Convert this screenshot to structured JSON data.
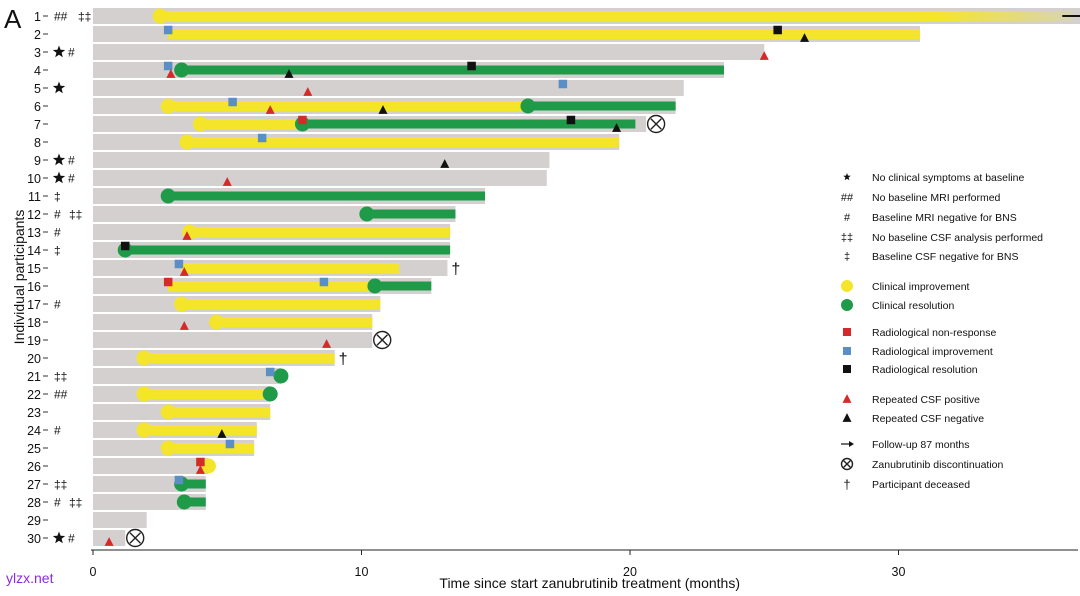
{
  "panel_label": "A",
  "watermark": "ylzx.net",
  "chart_data": {
    "type": "swimmer",
    "xlabel": "Time since start zanubrutinib treatment (months)",
    "ylabel": "Individual participants",
    "xlim": [
      0,
      37
    ],
    "xticks": [
      0,
      10,
      20,
      30
    ],
    "participants": [
      {
        "id": "1",
        "marks": "## ‡‡",
        "duration": 37,
        "arrow": true,
        "segments": [
          {
            "type": "clinical_improvement",
            "start": 2.5,
            "end": 36.5,
            "fade": true
          }
        ],
        "events": [
          {
            "type": "clinical_improvement_dot",
            "t": 2.5
          }
        ]
      },
      {
        "id": "2",
        "marks": "",
        "duration": 30.8,
        "segments": [
          {
            "type": "clinical_improvement",
            "start": 2.8,
            "end": 30.8
          }
        ],
        "events": [
          {
            "type": "radiological_improvement",
            "t": 2.8
          },
          {
            "type": "radiological_resolution",
            "t": 25.5
          },
          {
            "type": "csf_negative",
            "t": 26.5
          }
        ]
      },
      {
        "id": "3",
        "marks": "* #",
        "duration": 25.0,
        "segments": [],
        "events": [
          {
            "type": "csf_positive",
            "t": 25.0
          }
        ]
      },
      {
        "id": "4",
        "marks": "",
        "duration": 23.5,
        "segments": [
          {
            "type": "clinical_resolution",
            "start": 3.3,
            "end": 23.5
          }
        ],
        "events": [
          {
            "type": "radiological_improvement",
            "t": 2.8
          },
          {
            "type": "csf_positive",
            "t": 2.9
          },
          {
            "type": "clinical_resolution_dot",
            "t": 3.3
          },
          {
            "type": "csf_negative",
            "t": 7.3
          },
          {
            "type": "radiological_resolution",
            "t": 14.1
          }
        ]
      },
      {
        "id": "5",
        "marks": "*",
        "duration": 22.0,
        "segments": [],
        "events": [
          {
            "type": "csf_positive",
            "t": 8.0
          },
          {
            "type": "radiological_improvement",
            "t": 17.5
          }
        ]
      },
      {
        "id": "6",
        "marks": "",
        "duration": 21.7,
        "segments": [
          {
            "type": "clinical_improvement",
            "start": 2.8,
            "end": 16.2
          },
          {
            "type": "clinical_resolution",
            "start": 16.2,
            "end": 21.7
          }
        ],
        "events": [
          {
            "type": "clinical_improvement_dot",
            "t": 2.8
          },
          {
            "type": "radiological_improvement",
            "t": 5.2
          },
          {
            "type": "csf_positive",
            "t": 6.6
          },
          {
            "type": "csf_negative",
            "t": 10.8
          },
          {
            "type": "clinical_resolution_dot",
            "t": 16.2
          }
        ]
      },
      {
        "id": "7",
        "marks": "",
        "duration": 20.6,
        "discontinued": true,
        "segments": [
          {
            "type": "clinical_improvement",
            "start": 4.0,
            "end": 7.8
          },
          {
            "type": "clinical_resolution",
            "start": 7.8,
            "end": 20.2
          }
        ],
        "events": [
          {
            "type": "clinical_improvement_dot",
            "t": 4.0
          },
          {
            "type": "radiological_nonresponse",
            "t": 7.8
          },
          {
            "type": "clinical_resolution_dot",
            "t": 7.8
          },
          {
            "type": "radiological_resolution",
            "t": 17.8
          },
          {
            "type": "csf_negative",
            "t": 19.5
          }
        ]
      },
      {
        "id": "8",
        "marks": "",
        "duration": 19.6,
        "segments": [
          {
            "type": "clinical_improvement",
            "start": 3.5,
            "end": 19.6
          }
        ],
        "events": [
          {
            "type": "clinical_improvement_dot",
            "t": 3.5
          },
          {
            "type": "radiological_improvement",
            "t": 6.3
          }
        ]
      },
      {
        "id": "9",
        "marks": "* #",
        "duration": 17.0,
        "segments": [],
        "events": [
          {
            "type": "csf_negative",
            "t": 13.1
          }
        ]
      },
      {
        "id": "10",
        "marks": "* #",
        "duration": 16.9,
        "segments": [],
        "events": [
          {
            "type": "csf_positive",
            "t": 5.0
          }
        ]
      },
      {
        "id": "11",
        "marks": "‡",
        "duration": 14.6,
        "segments": [
          {
            "type": "clinical_resolution",
            "start": 2.8,
            "end": 14.6
          }
        ],
        "events": [
          {
            "type": "clinical_resolution_dot",
            "t": 2.8
          }
        ]
      },
      {
        "id": "12",
        "marks": "# ‡‡",
        "duration": 13.5,
        "segments": [
          {
            "type": "clinical_resolution",
            "start": 10.2,
            "end": 13.5
          }
        ],
        "events": [
          {
            "type": "clinical_resolution_dot",
            "t": 10.2
          }
        ]
      },
      {
        "id": "13",
        "marks": "#",
        "duration": 13.3,
        "segments": [
          {
            "type": "clinical_improvement",
            "start": 3.6,
            "end": 13.3
          }
        ],
        "events": [
          {
            "type": "clinical_improvement_dot",
            "t": 3.6
          },
          {
            "type": "csf_positive",
            "t": 3.5
          }
        ]
      },
      {
        "id": "14",
        "marks": "‡",
        "duration": 13.3,
        "segments": [
          {
            "type": "clinical_resolution",
            "start": 1.2,
            "end": 13.3
          }
        ],
        "events": [
          {
            "type": "clinical_resolution_dot",
            "t": 1.2
          },
          {
            "type": "radiological_resolution",
            "t": 1.2
          }
        ]
      },
      {
        "id": "15",
        "marks": "",
        "duration": 13.2,
        "deceased": true,
        "segments": [
          {
            "type": "clinical_improvement",
            "start": 3.3,
            "end": 11.4
          }
        ],
        "events": [
          {
            "type": "radiological_improvement",
            "t": 3.2
          },
          {
            "type": "csf_positive",
            "t": 3.4
          }
        ]
      },
      {
        "id": "16",
        "marks": "",
        "duration": 12.6,
        "segments": [
          {
            "type": "clinical_improvement",
            "start": 2.8,
            "end": 10.5
          },
          {
            "type": "clinical_resolution",
            "start": 10.5,
            "end": 12.6
          }
        ],
        "events": [
          {
            "type": "radiological_nonresponse",
            "t": 2.8
          },
          {
            "type": "radiological_improvement",
            "t": 8.6
          },
          {
            "type": "clinical_resolution_dot",
            "t": 10.5
          }
        ]
      },
      {
        "id": "17",
        "marks": "#",
        "duration": 10.7,
        "segments": [
          {
            "type": "clinical_improvement",
            "start": 3.3,
            "end": 10.7
          }
        ],
        "events": [
          {
            "type": "clinical_improvement_dot",
            "t": 3.3
          }
        ]
      },
      {
        "id": "18",
        "marks": "",
        "duration": 10.4,
        "segments": [
          {
            "type": "clinical_improvement",
            "start": 4.6,
            "end": 10.4
          }
        ],
        "events": [
          {
            "type": "clinical_improvement_dot",
            "t": 4.6
          },
          {
            "type": "csf_positive",
            "t": 3.4
          }
        ]
      },
      {
        "id": "19",
        "marks": "",
        "duration": 10.4,
        "discontinued": true,
        "segments": [],
        "events": [
          {
            "type": "csf_positive",
            "t": 8.7
          }
        ]
      },
      {
        "id": "20",
        "marks": "",
        "duration": 9.0,
        "deceased": true,
        "segments": [
          {
            "type": "clinical_improvement",
            "start": 1.9,
            "end": 9.0
          }
        ],
        "events": [
          {
            "type": "clinical_improvement_dot",
            "t": 1.9
          }
        ]
      },
      {
        "id": "21",
        "marks": "‡‡",
        "duration": 7.0,
        "segments": [],
        "events": [
          {
            "type": "radiological_improvement",
            "t": 6.6
          },
          {
            "type": "clinical_resolution_dot",
            "t": 7.0
          }
        ]
      },
      {
        "id": "22",
        "marks": "##",
        "duration": 6.6,
        "segments": [
          {
            "type": "clinical_improvement",
            "start": 1.9,
            "end": 6.6
          }
        ],
        "events": [
          {
            "type": "clinical_improvement_dot",
            "t": 1.9
          },
          {
            "type": "clinical_resolution_dot",
            "t": 6.6
          }
        ]
      },
      {
        "id": "23",
        "marks": "",
        "duration": 6.6,
        "segments": [
          {
            "type": "clinical_improvement",
            "start": 2.8,
            "end": 6.6
          }
        ],
        "events": [
          {
            "type": "clinical_improvement_dot",
            "t": 2.8
          }
        ]
      },
      {
        "id": "24",
        "marks": "#",
        "duration": 6.1,
        "segments": [
          {
            "type": "clinical_improvement",
            "start": 1.9,
            "end": 6.1
          }
        ],
        "events": [
          {
            "type": "clinical_improvement_dot",
            "t": 1.9
          },
          {
            "type": "csf_negative",
            "t": 4.8
          }
        ]
      },
      {
        "id": "25",
        "marks": "",
        "duration": 6.0,
        "segments": [
          {
            "type": "clinical_improvement",
            "start": 2.8,
            "end": 6.0
          }
        ],
        "events": [
          {
            "type": "clinical_improvement_dot",
            "t": 2.8
          },
          {
            "type": "radiological_improvement",
            "t": 5.1
          }
        ]
      },
      {
        "id": "26",
        "marks": "",
        "duration": 4.3,
        "segments": [],
        "events": [
          {
            "type": "clinical_improvement_dot",
            "t": 4.3
          },
          {
            "type": "radiological_nonresponse",
            "t": 4.0
          },
          {
            "type": "csf_positive",
            "t": 4.0
          }
        ]
      },
      {
        "id": "27",
        "marks": "‡‡",
        "duration": 4.2,
        "segments": [
          {
            "type": "clinical_resolution",
            "start": 3.3,
            "end": 4.2
          }
        ],
        "events": [
          {
            "type": "clinical_resolution_dot",
            "t": 3.3
          },
          {
            "type": "radiological_improvement",
            "t": 3.2
          }
        ]
      },
      {
        "id": "28",
        "marks": "# ‡‡",
        "duration": 4.2,
        "segments": [
          {
            "type": "clinical_resolution",
            "start": 3.4,
            "end": 4.2
          }
        ],
        "events": [
          {
            "type": "clinical_resolution_dot",
            "t": 3.4
          }
        ]
      },
      {
        "id": "29",
        "marks": "",
        "duration": 2.0,
        "segments": [],
        "events": []
      },
      {
        "id": "30",
        "marks": "* #",
        "duration": 1.2,
        "discontinued": true,
        "segments": [],
        "events": [
          {
            "type": "csf_positive",
            "t": 0.6
          }
        ]
      }
    ],
    "legend": [
      {
        "symbol": "star",
        "label": "No clinical symptoms at baseline"
      },
      {
        "symbol": "text",
        "text": "##",
        "label": "No baseline MRI performed"
      },
      {
        "symbol": "text",
        "text": "#",
        "label": "Baseline MRI negative for BNS"
      },
      {
        "symbol": "text",
        "text": "‡‡",
        "label": "No baseline CSF analysis performed"
      },
      {
        "symbol": "text",
        "text": "‡",
        "label": "Baseline CSF negative for BNS"
      },
      {
        "symbol": "yellow-circle",
        "label": "Clinical improvement"
      },
      {
        "symbol": "green-circle",
        "label": "Clinical resolution"
      },
      {
        "symbol": "red-square",
        "label": "Radiological non-response"
      },
      {
        "symbol": "blue-square",
        "label": "Radiological improvement"
      },
      {
        "symbol": "black-square",
        "label": "Radiological resolution"
      },
      {
        "symbol": "red-triangle",
        "label": "Repeated CSF positive"
      },
      {
        "symbol": "black-triangle",
        "label": "Repeated CSF negative"
      },
      {
        "symbol": "arrow",
        "label": "Follow-up 87 months"
      },
      {
        "symbol": "circle-x",
        "label": "Zanubrutinib discontinuation"
      },
      {
        "symbol": "dagger",
        "text": "†",
        "label": "Participant deceased"
      }
    ],
    "colors": {
      "bar_gray": "#d3d0cf",
      "clinical_improvement": "#f5e52a",
      "clinical_resolution": "#1f9a48",
      "radiological_nonresponse": "#d62a2a",
      "radiological_improvement": "#5b8ec4",
      "radiological_resolution": "#111111",
      "csf_positive": "#d62a2a",
      "csf_negative": "#111111"
    }
  }
}
